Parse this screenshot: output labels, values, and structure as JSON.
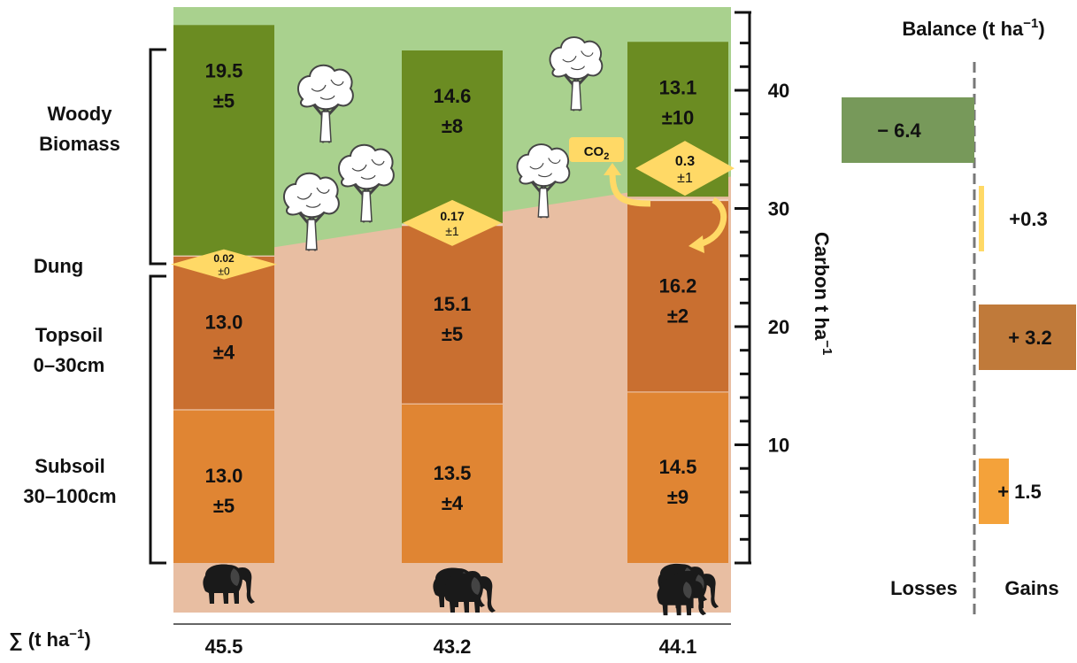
{
  "chart_data": {
    "type": "bar",
    "stacked": true,
    "categories": [
      "",
      "",
      ""
    ],
    "stacks": [
      {
        "subsoil": {
          "value": 13.0,
          "label": "13.0",
          "err": "±5"
        },
        "topsoil": {
          "value": 13.0,
          "label": "13.0",
          "err": "±4"
        },
        "dung": {
          "value": 0.02,
          "label": "0.02",
          "err": "±0"
        },
        "woody": {
          "value": 19.5,
          "label": "19.5",
          "err": "±5"
        },
        "total": "45.5",
        "elephants": 1
      },
      {
        "subsoil": {
          "value": 13.5,
          "label": "13.5",
          "err": "±4"
        },
        "topsoil": {
          "value": 15.1,
          "label": "15.1",
          "err": "±5"
        },
        "dung": {
          "value": 0.17,
          "label": "0.17",
          "err": "±1"
        },
        "woody": {
          "value": 14.6,
          "label": "14.6",
          "err": "±8"
        },
        "total": "43.2",
        "elephants": 2
      },
      {
        "subsoil": {
          "value": 14.5,
          "label": "14.5",
          "err": "±9"
        },
        "topsoil": {
          "value": 16.2,
          "label": "16.2",
          "err": "±2"
        },
        "dung": {
          "value": 0.3,
          "label": "0.3",
          "err": "±1"
        },
        "woody": {
          "value": 13.1,
          "label": "13.1",
          "err": "±10"
        },
        "total": "44.1",
        "elephants": 3
      }
    ],
    "ylim": [
      0,
      46
    ],
    "yticks": [
      10,
      20,
      30,
      40
    ],
    "ylabel_main": "Carbon t ha",
    "ylabel_sup": "−1",
    "component_labels": {
      "woody": [
        "Woody",
        "Biomass"
      ],
      "dung": [
        "Dung"
      ],
      "topsoil": [
        "Topsoil",
        "0–30cm"
      ],
      "subsoil": [
        "Subsoil",
        "30–100cm"
      ]
    },
    "sum_label_main": "∑ (t ha",
    "sum_label_sup": "−1",
    "sum_label_end": ")",
    "co2_main": "CO",
    "co2_sub": "2",
    "balance": {
      "title_main": "Balance (t ha",
      "title_sup": "−1",
      "title_end": ")",
      "range": [
        -6.4,
        3.2
      ],
      "items": [
        {
          "component": "woody",
          "value": -6.4,
          "label": "− 6.4"
        },
        {
          "component": "dung",
          "value": 0.3,
          "label": "+0.3"
        },
        {
          "component": "topsoil",
          "value": 3.2,
          "label": "+ 3.2"
        },
        {
          "component": "subsoil",
          "value": 1.5,
          "label": "+  1.5"
        }
      ],
      "losses_label": "Losses",
      "gains_label": "Gains"
    },
    "colors": {
      "woody": "#6b8c22",
      "woody_balance": "#77995a",
      "dung": "#ffd966",
      "topsoil": "#c96f30",
      "topsoil_balance": "#c07a3a",
      "subsoil": "#e08533",
      "subsoil_balance": "#f4a23a",
      "sky": "#a9d18e",
      "ground": "#e8bea2",
      "tree_fill": "#ffffff",
      "tree_stroke": "#444444",
      "elephant": "#1a1a1a"
    }
  }
}
